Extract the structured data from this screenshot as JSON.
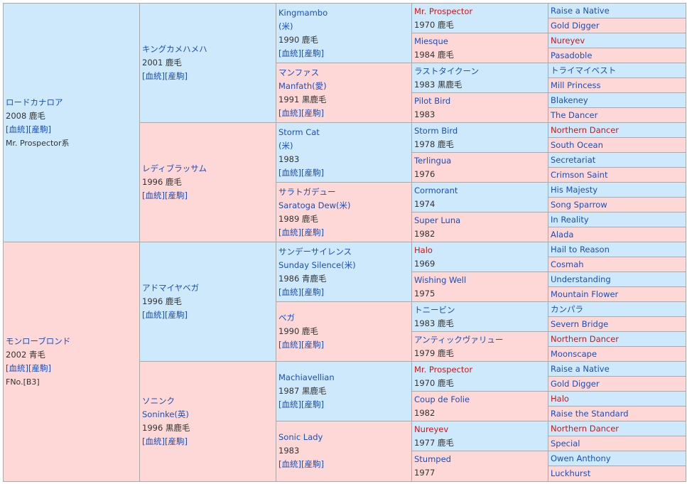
{
  "colors": {
    "sire_bg": "#cde9fb",
    "dam_bg": "#fdd8d7",
    "link": "#1a4ec3",
    "highlight": "#dd1111"
  },
  "links": {
    "pedigree": "[血統]",
    "produce": "[産駒]"
  },
  "gen1": [
    {
      "name": "ロードカナロア",
      "info": "2008 鹿毛",
      "extra": "Mr. Prospector系"
    },
    {
      "name": "モンローブロンド",
      "info": "2002 青毛",
      "extra": "FNo.[B3]"
    }
  ],
  "gen2": [
    {
      "name": "キングカメハメハ",
      "info": "2001 鹿毛"
    },
    {
      "name": "レディブラッサム",
      "info": "1996 鹿毛"
    },
    {
      "name": "アドマイヤベガ",
      "info": "1996 鹿毛"
    },
    {
      "name": "ソニンク",
      "alt": "Soninke(英)",
      "info": "1996 黒鹿毛"
    }
  ],
  "gen3": [
    {
      "name": "Kingmambo",
      "alt": "(米)",
      "info": "1990 鹿毛"
    },
    {
      "name": "マンファス",
      "alt": "Manfath(愛)",
      "info": "1991 黒鹿毛"
    },
    {
      "name": "Storm Cat",
      "alt": "(米)",
      "info": "1983"
    },
    {
      "name": "サラトガデュー",
      "alt": "Saratoga Dew(米)",
      "info": "1989 鹿毛"
    },
    {
      "name": "サンデーサイレンス",
      "alt": "Sunday Silence(米)",
      "info": "1986 青鹿毛"
    },
    {
      "name": "ベガ",
      "info": "1990 鹿毛"
    },
    {
      "name": "Machiavellian",
      "info": "1987 黒鹿毛"
    },
    {
      "name": "Sonic Lady",
      "info": "1983"
    }
  ],
  "gen4": [
    {
      "name": "Mr. Prospector",
      "info": "1970 鹿毛"
    },
    {
      "name": "Miesque",
      "info": "1984 鹿毛"
    },
    {
      "name": "ラストタイクーン",
      "info": "1983 黒鹿毛"
    },
    {
      "name": "Pilot Bird",
      "info": "1983"
    },
    {
      "name": "Storm Bird",
      "info": "1978 鹿毛"
    },
    {
      "name": "Terlingua",
      "info": "1976"
    },
    {
      "name": "Cormorant",
      "info": "1974"
    },
    {
      "name": "Super Luna",
      "info": "1982"
    },
    {
      "name": "Halo",
      "info": "1969"
    },
    {
      "name": "Wishing Well",
      "info": "1975"
    },
    {
      "name": "トニービン",
      "info": "1983 鹿毛"
    },
    {
      "name": "アンティックヴァリュー",
      "info": "1979 鹿毛"
    },
    {
      "name": "Mr. Prospector",
      "info": "1970 鹿毛"
    },
    {
      "name": "Coup de Folie",
      "info": "1982"
    },
    {
      "name": "Nureyev",
      "info": "1977 鹿毛"
    },
    {
      "name": "Stumped",
      "info": "1977"
    }
  ],
  "gen5": [
    "Raise a Native",
    "Gold Digger",
    "Nureyev",
    "Pasadoble",
    "トライマイベスト",
    "Mill Princess",
    "Blakeney",
    "The Dancer",
    "Northern Dancer",
    "South Ocean",
    "Secretariat",
    "Crimson Saint",
    "His Majesty",
    "Song Sparrow",
    "In Reality",
    "Alada",
    "Hail to Reason",
    "Cosmah",
    "Understanding",
    "Mountain Flower",
    "カンパラ",
    "Severn Bridge",
    "Northern Dancer",
    "Moonscape",
    "Raise a Native",
    "Gold Digger",
    "Halo",
    "Raise the Standard",
    "Northern Dancer",
    "Special",
    "Owen Anthony",
    "Luckhurst"
  ]
}
